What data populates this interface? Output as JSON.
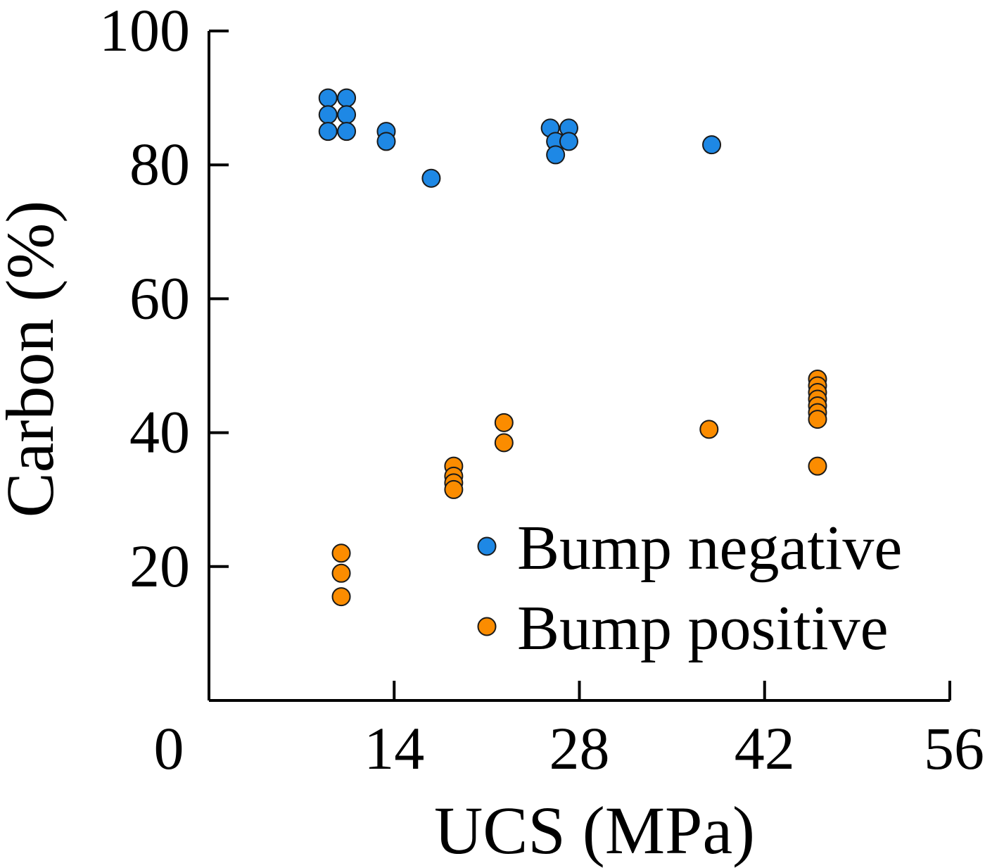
{
  "chart_data": {
    "type": "scatter",
    "title": "",
    "xlabel": "UCS (MPa)",
    "ylabel": "Carbon (%)",
    "xlim": [
      0,
      56
    ],
    "ylim": [
      0,
      100
    ],
    "x_ticks": [
      0,
      14,
      28,
      42,
      56
    ],
    "y_ticks": [
      20,
      40,
      60,
      80,
      100
    ],
    "x_tick_labels": [
      "0",
      "14",
      "28",
      "42",
      "56"
    ],
    "y_tick_labels": [
      "20",
      "40",
      "60",
      "80",
      "100"
    ],
    "grid": false,
    "legend_position": "bottom-right",
    "series": [
      {
        "name": "Bump negative",
        "color": "#1E88E5",
        "points": [
          {
            "x": 9.0,
            "y": 90.0
          },
          {
            "x": 10.4,
            "y": 90.0
          },
          {
            "x": 9.0,
            "y": 87.5
          },
          {
            "x": 10.4,
            "y": 87.5
          },
          {
            "x": 9.0,
            "y": 85.0
          },
          {
            "x": 10.4,
            "y": 85.0
          },
          {
            "x": 13.4,
            "y": 85.0
          },
          {
            "x": 13.4,
            "y": 83.5
          },
          {
            "x": 16.8,
            "y": 78.0
          },
          {
            "x": 25.8,
            "y": 85.5
          },
          {
            "x": 27.2,
            "y": 85.5
          },
          {
            "x": 26.2,
            "y": 83.5
          },
          {
            "x": 27.2,
            "y": 83.5
          },
          {
            "x": 26.2,
            "y": 81.5
          },
          {
            "x": 38.0,
            "y": 83.0
          }
        ]
      },
      {
        "name": "Bump positive",
        "color": "#FB8C00",
        "points": [
          {
            "x": 10.0,
            "y": 22.0
          },
          {
            "x": 10.0,
            "y": 19.0
          },
          {
            "x": 10.0,
            "y": 15.5
          },
          {
            "x": 18.5,
            "y": 35.0
          },
          {
            "x": 18.5,
            "y": 33.5
          },
          {
            "x": 18.5,
            "y": 32.5
          },
          {
            "x": 18.5,
            "y": 31.5
          },
          {
            "x": 22.3,
            "y": 41.5
          },
          {
            "x": 22.3,
            "y": 38.5
          },
          {
            "x": 37.8,
            "y": 40.5
          },
          {
            "x": 46.0,
            "y": 48.0
          },
          {
            "x": 46.0,
            "y": 47.0
          },
          {
            "x": 46.0,
            "y": 46.0
          },
          {
            "x": 46.0,
            "y": 45.0
          },
          {
            "x": 46.0,
            "y": 44.0
          },
          {
            "x": 46.0,
            "y": 43.0
          },
          {
            "x": 46.0,
            "y": 42.0
          },
          {
            "x": 46.0,
            "y": 35.0
          }
        ]
      }
    ]
  }
}
